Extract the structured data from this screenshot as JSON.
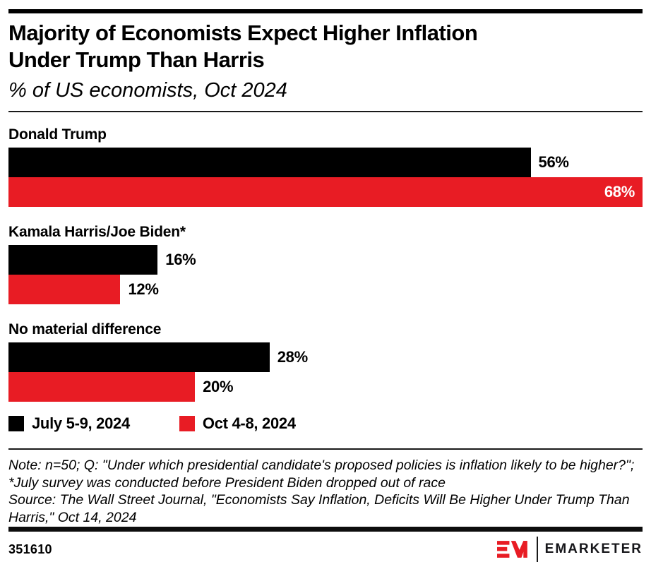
{
  "title": {
    "line1": "Majority of Economists Expect Higher Inflation",
    "line2": "Under Trump Than Harris"
  },
  "subtitle": "% of US economists, Oct 2024",
  "chart_data": {
    "type": "bar",
    "orientation": "horizontal",
    "title": "Majority of Economists Expect Higher Inflation Under Trump Than Harris",
    "subtitle": "% of US economists, Oct 2024",
    "unit": "%",
    "categories": [
      "Donald Trump",
      "Kamala Harris/Joe Biden*",
      "No material difference"
    ],
    "series": [
      {
        "name": "July 5-9, 2024",
        "color": "#000000",
        "values": [
          56,
          16,
          28
        ],
        "labels": [
          "56%",
          "16%",
          "28%"
        ]
      },
      {
        "name": "Oct 4-8, 2024",
        "color": "#E81C24",
        "values": [
          68,
          12,
          20
        ],
        "labels": [
          "68%",
          "12%",
          "20%"
        ]
      }
    ],
    "xlim": [
      0,
      68
    ],
    "grid": false,
    "legend_position": "bottom",
    "value_label_inside_threshold": 0.93
  },
  "notes": {
    "note": "Note: n=50; Q: \"Under which presidential candidate's proposed policies is inflation likely to be higher?\"; *July survey was conducted before President Biden dropped out of race",
    "source": "Source: The Wall Street Journal, \"Economists Say Inflation, Deficits Will Be Higher Under Trump Than Harris,\" Oct 14, 2024"
  },
  "footer": {
    "chart_id": "351610",
    "brand_name": "EMARKETER"
  },
  "colors": {
    "accent_red": "#E81C24",
    "bar_black": "#000000",
    "inside_label_text": "#FFFFFF",
    "rule_black": "#1a1a1a"
  }
}
